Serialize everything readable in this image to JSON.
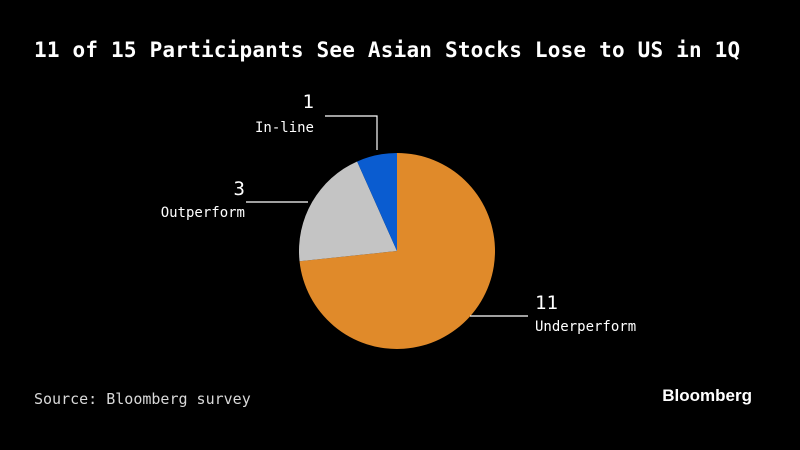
{
  "title": "11 of 15 Participants See Asian Stocks Lose to US in 1Q",
  "source": "Source: Bloomberg survey",
  "brand": "Bloomberg",
  "colors": {
    "background": "#000000",
    "leader_line": "#ffffff"
  },
  "chart_data": {
    "type": "pie",
    "title": "11 of 15 Participants See Asian Stocks Lose to US in 1Q",
    "total": 15,
    "slices": [
      {
        "label": "Underperform",
        "value": 11,
        "color": "#e08a2a"
      },
      {
        "label": "Outperform",
        "value": 3,
        "color": "#c4c4c4"
      },
      {
        "label": "In-line",
        "value": 1,
        "color": "#0a5cd0"
      }
    ]
  }
}
